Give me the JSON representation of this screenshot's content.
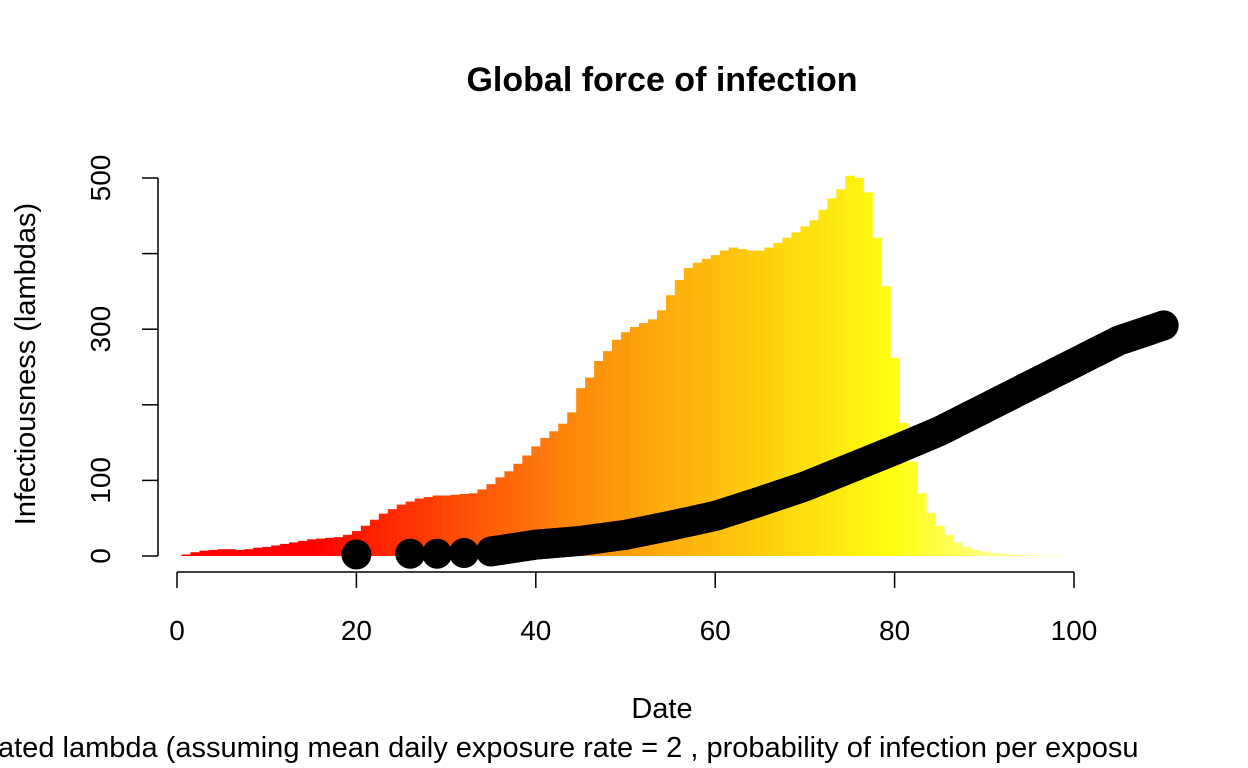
{
  "chart_data": {
    "type": "bar",
    "title": "Global force of infection",
    "xlabel": "Date",
    "ylabel": "Infectiousness (lambdas)",
    "subtitle": "ated lambda (assuming mean daily exposure rate = 2 , probability of infection per exposu",
    "xlim": [
      0,
      100
    ],
    "ylim": [
      0,
      500
    ],
    "x_ticks": [
      0,
      20,
      40,
      60,
      80,
      100
    ],
    "y_ticks": [
      0,
      100,
      300,
      500
    ],
    "y_minor_ticks": [
      0,
      100,
      200,
      300,
      400,
      500
    ],
    "grid": false,
    "colors": {
      "low": "#ff0000",
      "mid": "#fd8c0a",
      "high": "#ffff10",
      "tail": "#ffff80",
      "points": "#000000"
    },
    "series": [
      {
        "kind": "bars",
        "x": [
          1,
          2,
          3,
          4,
          5,
          6,
          7,
          8,
          9,
          10,
          11,
          12,
          13,
          14,
          15,
          16,
          17,
          18,
          19,
          20,
          21,
          22,
          23,
          24,
          25,
          26,
          27,
          28,
          29,
          30,
          31,
          32,
          33,
          34,
          35,
          36,
          37,
          38,
          39,
          40,
          41,
          42,
          43,
          44,
          45,
          46,
          47,
          48,
          49,
          50,
          51,
          52,
          53,
          54,
          55,
          56,
          57,
          58,
          59,
          60,
          61,
          62,
          63,
          64,
          65,
          66,
          67,
          68,
          69,
          70,
          71,
          72,
          73,
          74,
          75,
          76,
          77,
          78,
          79,
          80,
          81,
          82,
          83,
          84,
          85,
          86,
          87,
          88,
          89,
          90,
          91,
          92,
          93,
          94,
          95,
          96,
          97,
          98
        ],
        "values": [
          2,
          5,
          7,
          8,
          9,
          9,
          8,
          9,
          11,
          12,
          14,
          16,
          18,
          20,
          22,
          23,
          24,
          25,
          28,
          33,
          40,
          48,
          56,
          62,
          68,
          72,
          76,
          78,
          80,
          80,
          81,
          82,
          83,
          88,
          95,
          104,
          112,
          122,
          133,
          145,
          156,
          165,
          175,
          190,
          222,
          236,
          258,
          271,
          286,
          296,
          303,
          308,
          313,
          325,
          345,
          365,
          381,
          388,
          393,
          398,
          404,
          408,
          406,
          404,
          404,
          408,
          414,
          421,
          428,
          436,
          444,
          458,
          473,
          485,
          503,
          500,
          481,
          421,
          357,
          262,
          176,
          125,
          83,
          57,
          40,
          28,
          18,
          12,
          8,
          6,
          4,
          3,
          2,
          1,
          1,
          0.5,
          0.3,
          0.2
        ]
      },
      {
        "kind": "points",
        "x": [
          20,
          26,
          29,
          32,
          35,
          40,
          45,
          50,
          55,
          60,
          65,
          70,
          75,
          80,
          85,
          90,
          95,
          100,
          105,
          110
        ],
        "values": [
          2,
          3,
          3,
          4,
          6,
          15,
          20,
          28,
          40,
          53,
          72,
          92,
          116,
          140,
          165,
          195,
          225,
          255,
          285,
          305
        ]
      }
    ]
  }
}
